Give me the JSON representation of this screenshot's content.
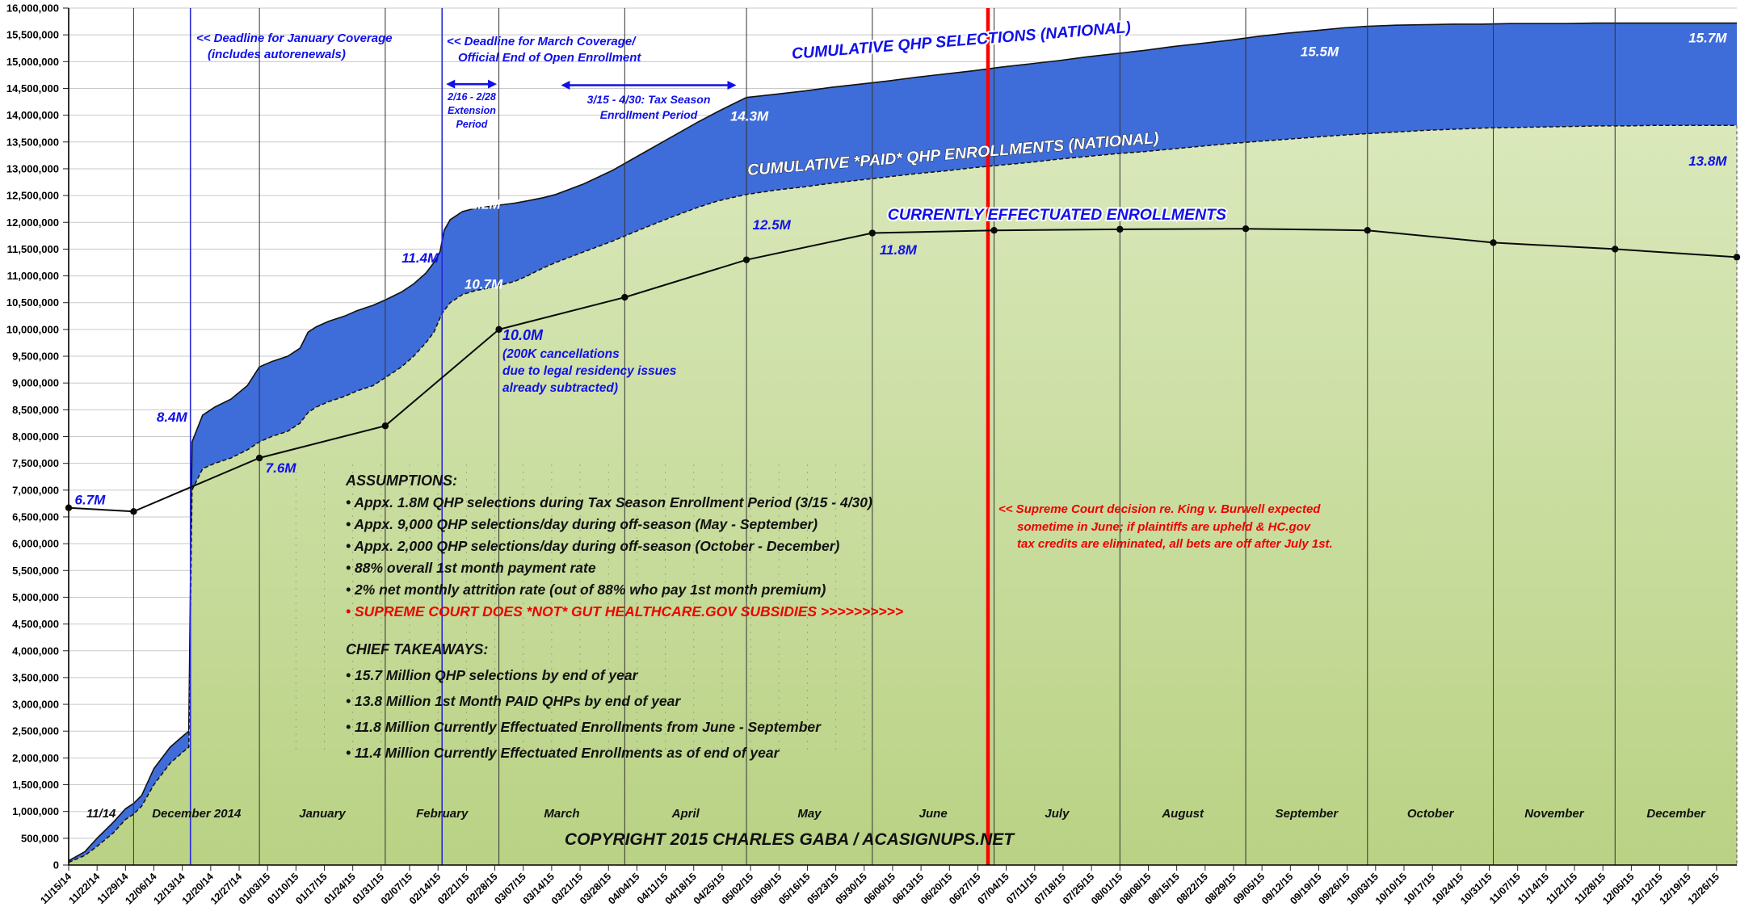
{
  "annotations": {
    "january_deadline": {
      "lines": [
        "<< Deadline for January Coverage",
        "(includes autorenewals)"
      ]
    },
    "march_deadline": {
      "lines": [
        "<< Deadline for March Coverage/",
        "Official End of Open Enrollment"
      ]
    },
    "extension_period": {
      "lines": [
        "2/16 - 2/28",
        "Extension",
        "Period"
      ]
    },
    "tax_season": {
      "lines": [
        "3/15 - 4/30: Tax Season",
        "Enrollment Period"
      ]
    },
    "cancellations": {
      "lines": [
        "10.0M",
        "(200K cancellations",
        "due to legal residency issues",
        "already subtracted)"
      ]
    },
    "supreme_court": {
      "lines": [
        "<< Supreme Court decision re. King v. Burwell expected",
        "sometime in June; if plaintiffs are upheld & HC.gov",
        "tax credits are eliminated, all bets are off after July 1st."
      ]
    }
  },
  "assumptions": {
    "heading": "ASSUMPTIONS:",
    "items": [
      "• Appx. 1.8M QHP selections during Tax Season Enrollment Period (3/15 - 4/30)",
      "• Appx. 9,000 QHP selections/day during off-season (May - September)",
      "• Appx. 2,000 QHP selections/day during off-season (October - December)",
      "• 88% overall 1st month payment rate",
      "• 2% net monthly attrition rate (out of 88% who pay 1st month premium)",
      "• SUPREME COURT DOES *NOT* GUT HEALTHCARE.GOV SUBSIDIES >>>>>>>>>>"
    ]
  },
  "takeaways": {
    "heading": "CHIEF TAKEAWAYS:",
    "items": [
      "• 15.7 Million QHP selections by end of year",
      "• 13.8 Million 1st Month PAID QHPs by end of year",
      "• 11.8 Million Currently Effectuated Enrollments from June - September",
      "• 11.4 Million Currently Effectuated Enrollments as of end of year"
    ]
  },
  "copyright": "COPYRIGHT 2015 CHARLES GABA / ACASIGNUPS.NET",
  "colors": {
    "selections_fill": "#3e6cd8",
    "paid_fill_top": "#dae8bb",
    "paid_fill_bottom": "#b9d284",
    "blue_text": "#1010e8",
    "red": "#ff0000",
    "line": "#111111",
    "gridline": "#c8c8c8",
    "month_line": "#333333",
    "deadline_blue": "#2929d6"
  },
  "chart_data": {
    "type": "area",
    "x_unit": "days since 11/15/2014, weekly ticks",
    "ylim": [
      0,
      16000000
    ],
    "y_axis": {
      "min": 0,
      "max": 16000000,
      "step": 500000
    },
    "x_axis_tick_labels": [
      "11/15/14",
      "11/22/14",
      "11/29/14",
      "12/06/14",
      "12/13/14",
      "12/20/14",
      "12/27/14",
      "01/03/15",
      "01/10/15",
      "01/17/15",
      "01/24/15",
      "01/31/15",
      "02/07/15",
      "02/14/15",
      "02/21/15",
      "02/28/15",
      "03/07/15",
      "03/14/15",
      "03/21/15",
      "03/28/15",
      "04/04/15",
      "04/11/15",
      "04/18/15",
      "04/25/15",
      "05/02/15",
      "05/09/15",
      "05/16/15",
      "05/23/15",
      "05/30/15",
      "06/06/15",
      "06/13/15",
      "06/20/15",
      "06/27/15",
      "07/04/15",
      "07/11/15",
      "07/18/15",
      "07/25/15",
      "08/01/15",
      "08/08/15",
      "08/15/15",
      "08/22/15",
      "08/29/15",
      "09/05/15",
      "09/12/15",
      "09/19/15",
      "09/26/15",
      "10/03/15",
      "10/10/15",
      "10/17/15",
      "10/24/15",
      "10/31/15",
      "11/07/15",
      "11/14/15",
      "11/21/15",
      "11/28/15",
      "12/05/15",
      "12/12/15",
      "12/19/15",
      "12/26/15"
    ],
    "month_gridline_days": [
      16,
      47,
      78,
      106,
      137,
      167,
      198,
      228,
      259,
      290,
      320,
      351,
      381
    ],
    "month_labels": [
      {
        "label": "11/14",
        "day": 8
      },
      {
        "label": "December 2014",
        "day": 31.5
      },
      {
        "label": "January",
        "day": 62.5
      },
      {
        "label": "February",
        "day": 92
      },
      {
        "label": "March",
        "day": 121.5
      },
      {
        "label": "April",
        "day": 152
      },
      {
        "label": "May",
        "day": 182.5
      },
      {
        "label": "June",
        "day": 213
      },
      {
        "label": "July",
        "day": 243.5
      },
      {
        "label": "August",
        "day": 274.5
      },
      {
        "label": "September",
        "day": 305
      },
      {
        "label": "October",
        "day": 335.5
      },
      {
        "label": "November",
        "day": 366
      },
      {
        "label": "December",
        "day": 396
      }
    ],
    "blue_deadline_days": [
      30,
      92
    ],
    "red_line_day": 226.5,
    "series": [
      {
        "name": "CUMULATIVE QHP SELECTIONS (NATIONAL)",
        "kind": "area",
        "units": "millions",
        "points": [
          [
            0,
            0.08
          ],
          [
            4,
            0.25
          ],
          [
            7,
            0.5
          ],
          [
            11,
            0.8
          ],
          [
            14,
            1.05
          ],
          [
            16,
            1.15
          ],
          [
            18,
            1.3
          ],
          [
            21,
            1.8
          ],
          [
            25,
            2.2
          ],
          [
            28,
            2.4
          ],
          [
            29.6,
            2.5
          ],
          [
            30.4,
            7.9
          ],
          [
            33,
            8.4
          ],
          [
            36,
            8.55
          ],
          [
            40,
            8.7
          ],
          [
            44,
            8.95
          ],
          [
            47,
            9.3
          ],
          [
            50,
            9.4
          ],
          [
            54,
            9.5
          ],
          [
            57,
            9.65
          ],
          [
            59,
            9.95
          ],
          [
            61,
            10.05
          ],
          [
            64,
            10.15
          ],
          [
            68,
            10.25
          ],
          [
            71,
            10.35
          ],
          [
            75,
            10.45
          ],
          [
            78,
            10.55
          ],
          [
            82,
            10.7
          ],
          [
            85,
            10.85
          ],
          [
            88,
            11.05
          ],
          [
            90,
            11.25
          ],
          [
            91.5,
            11.45
          ],
          [
            92.5,
            11.85
          ],
          [
            94,
            12.05
          ],
          [
            97,
            12.2
          ],
          [
            100,
            12.26
          ],
          [
            104,
            12.3
          ],
          [
            106,
            12.32
          ],
          [
            110,
            12.36
          ],
          [
            113,
            12.4
          ],
          [
            117,
            12.46
          ],
          [
            120,
            12.52
          ],
          [
            127,
            12.72
          ],
          [
            134,
            12.97
          ],
          [
            141,
            13.27
          ],
          [
            148,
            13.57
          ],
          [
            155,
            13.87
          ],
          [
            160,
            14.07
          ],
          [
            164,
            14.22
          ],
          [
            167,
            14.33
          ],
          [
            174,
            14.39
          ],
          [
            181,
            14.45
          ],
          [
            188,
            14.52
          ],
          [
            195,
            14.58
          ],
          [
            202,
            14.64
          ],
          [
            209,
            14.71
          ],
          [
            216,
            14.77
          ],
          [
            223,
            14.83
          ],
          [
            230,
            14.9
          ],
          [
            237,
            14.96
          ],
          [
            244,
            15.02
          ],
          [
            251,
            15.09
          ],
          [
            258,
            15.15
          ],
          [
            265,
            15.21
          ],
          [
            272,
            15.28
          ],
          [
            279,
            15.34
          ],
          [
            286,
            15.4
          ],
          [
            293,
            15.47
          ],
          [
            300,
            15.53
          ],
          [
            307,
            15.58
          ],
          [
            314,
            15.63
          ],
          [
            320,
            15.66
          ],
          [
            327,
            15.68
          ],
          [
            334,
            15.69
          ],
          [
            341,
            15.7
          ],
          [
            348,
            15.7
          ],
          [
            355,
            15.71
          ],
          [
            362,
            15.71
          ],
          [
            369,
            15.71
          ],
          [
            376,
            15.72
          ],
          [
            383,
            15.72
          ],
          [
            390,
            15.72
          ],
          [
            397,
            15.72
          ],
          [
            404,
            15.72
          ],
          [
            411,
            15.72
          ]
        ]
      },
      {
        "name": "CUMULATIVE *PAID* QHP ENROLLMENTS (NATIONAL)",
        "kind": "area",
        "units": "millions",
        "points": [
          [
            0,
            0.05
          ],
          [
            4,
            0.18
          ],
          [
            7,
            0.35
          ],
          [
            11,
            0.6
          ],
          [
            14,
            0.85
          ],
          [
            16,
            0.95
          ],
          [
            18,
            1.1
          ],
          [
            21,
            1.5
          ],
          [
            25,
            1.9
          ],
          [
            28,
            2.1
          ],
          [
            29.6,
            2.2
          ],
          [
            30.4,
            7.0
          ],
          [
            33,
            7.4
          ],
          [
            36,
            7.5
          ],
          [
            40,
            7.6
          ],
          [
            44,
            7.75
          ],
          [
            47,
            7.9
          ],
          [
            50,
            8.0
          ],
          [
            54,
            8.1
          ],
          [
            57,
            8.25
          ],
          [
            59,
            8.45
          ],
          [
            61,
            8.55
          ],
          [
            64,
            8.65
          ],
          [
            68,
            8.75
          ],
          [
            71,
            8.85
          ],
          [
            75,
            8.95
          ],
          [
            78,
            9.1
          ],
          [
            82,
            9.3
          ],
          [
            85,
            9.5
          ],
          [
            88,
            9.75
          ],
          [
            90,
            9.95
          ],
          [
            92,
            10.3
          ],
          [
            94,
            10.5
          ],
          [
            97,
            10.65
          ],
          [
            100,
            10.72
          ],
          [
            104,
            10.78
          ],
          [
            106,
            10.82
          ],
          [
            110,
            10.9
          ],
          [
            113,
            11.0
          ],
          [
            117,
            11.15
          ],
          [
            120,
            11.25
          ],
          [
            127,
            11.45
          ],
          [
            134,
            11.65
          ],
          [
            141,
            11.87
          ],
          [
            148,
            12.08
          ],
          [
            155,
            12.28
          ],
          [
            160,
            12.4
          ],
          [
            164,
            12.47
          ],
          [
            167,
            12.52
          ],
          [
            174,
            12.6
          ],
          [
            181,
            12.66
          ],
          [
            188,
            12.73
          ],
          [
            195,
            12.79
          ],
          [
            202,
            12.85
          ],
          [
            209,
            12.91
          ],
          [
            216,
            12.96
          ],
          [
            223,
            13.02
          ],
          [
            230,
            13.07
          ],
          [
            237,
            13.12
          ],
          [
            244,
            13.18
          ],
          [
            251,
            13.23
          ],
          [
            258,
            13.28
          ],
          [
            265,
            13.32
          ],
          [
            272,
            13.37
          ],
          [
            279,
            13.42
          ],
          [
            286,
            13.47
          ],
          [
            293,
            13.51
          ],
          [
            300,
            13.55
          ],
          [
            307,
            13.59
          ],
          [
            314,
            13.63
          ],
          [
            321,
            13.66
          ],
          [
            328,
            13.69
          ],
          [
            335,
            13.72
          ],
          [
            342,
            13.74
          ],
          [
            349,
            13.76
          ],
          [
            356,
            13.77
          ],
          [
            363,
            13.78
          ],
          [
            370,
            13.79
          ],
          [
            377,
            13.8
          ],
          [
            384,
            13.8
          ],
          [
            391,
            13.81
          ],
          [
            398,
            13.81
          ],
          [
            405,
            13.81
          ],
          [
            411,
            13.81
          ]
        ]
      },
      {
        "name": "CURRENTLY EFFECTUATED ENROLLMENTS",
        "kind": "line-markers",
        "units": "millions",
        "points": [
          [
            0,
            6.67
          ],
          [
            16,
            6.6
          ],
          [
            47,
            7.6
          ],
          [
            78,
            8.2
          ],
          [
            106,
            10.0
          ],
          [
            137,
            10.6
          ],
          [
            167,
            11.3
          ],
          [
            198,
            11.8
          ],
          [
            228,
            11.85
          ],
          [
            259,
            11.87
          ],
          [
            290,
            11.88
          ],
          [
            320,
            11.85
          ],
          [
            351,
            11.62
          ],
          [
            381,
            11.5
          ],
          [
            411,
            11.35
          ]
        ]
      }
    ],
    "data_labels": [
      {
        "text": "6.7M",
        "day": 1.5,
        "v": 6.73,
        "color": "blue",
        "anchor": "start"
      },
      {
        "text": "8.4M",
        "day": 29.2,
        "v": 8.28,
        "color": "blue",
        "anchor": "end"
      },
      {
        "text": "7.6M",
        "day": 48.5,
        "v": 7.33,
        "color": "blue",
        "anchor": "start"
      },
      {
        "text": "11.4M",
        "day": 91.2,
        "v": 11.25,
        "color": "blue",
        "anchor": "end"
      },
      {
        "text": "12.2M",
        "day": 97,
        "v": 12.25,
        "color": "white",
        "anchor": "start"
      },
      {
        "text": "10.7M",
        "day": 97.5,
        "v": 10.76,
        "color": "white",
        "anchor": "start"
      },
      {
        "text": "14.3M",
        "day": 163,
        "v": 13.9,
        "color": "white",
        "anchor": "start"
      },
      {
        "text": "12.5M",
        "day": 168.5,
        "v": 11.87,
        "color": "blue",
        "anchor": "start"
      },
      {
        "text": "11.8M",
        "day": 199.8,
        "v": 11.4,
        "color": "blue",
        "anchor": "start"
      },
      {
        "text": "15.5M",
        "day": 303.5,
        "v": 15.1,
        "color": "white",
        "anchor": "start"
      },
      {
        "text": "15.7M",
        "day": 408.5,
        "v": 15.36,
        "color": "white",
        "anchor": "end"
      },
      {
        "text": "13.8M",
        "day": 408.5,
        "v": 13.06,
        "color": "blue",
        "anchor": "end"
      }
    ],
    "series_labels": [
      {
        "text": "CUMULATIVE QHP SELECTIONS (NATIONAL)",
        "day": 220,
        "v": 15.3,
        "rotate": -4.5,
        "style": "blue-halo"
      },
      {
        "text": "CUMULATIVE *PAID* QHP ENROLLMENTS (NATIONAL)",
        "day": 218,
        "v": 13.18,
        "rotate": -4.5,
        "style": "white-outline"
      },
      {
        "text": "CURRENTLY EFFECTUATED ENROLLMENTS",
        "day": 243.5,
        "v": 12.05,
        "rotate": 0,
        "style": "blue-halo"
      }
    ],
    "period_arrows": [
      {
        "day1": 93,
        "day2": 105.5,
        "v": 14.58
      },
      {
        "day1": 121.3,
        "day2": 164.5,
        "v": 14.56
      }
    ]
  }
}
